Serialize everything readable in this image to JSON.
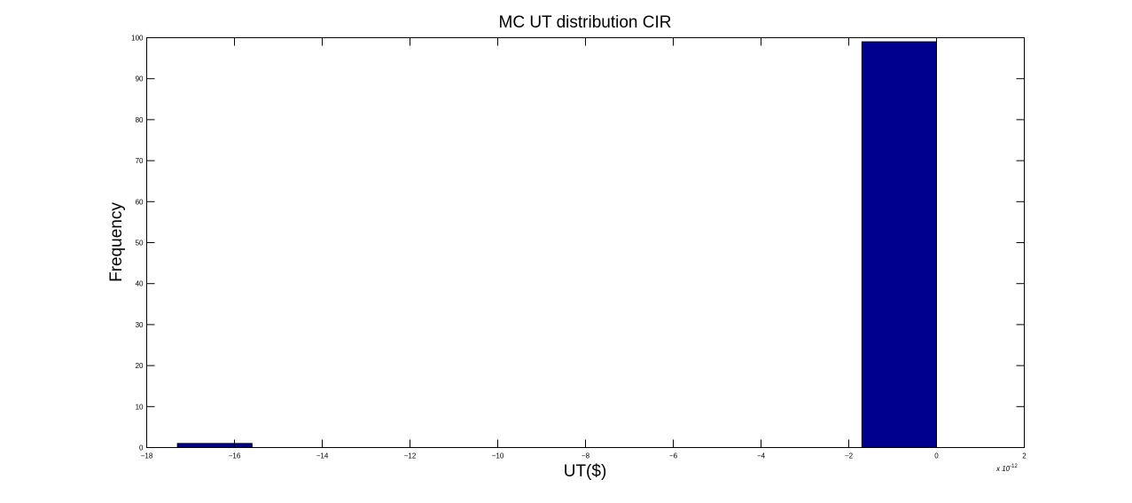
{
  "chart_data": {
    "type": "bar",
    "title": "MC UT distribution CIR",
    "xlabel": "UT($)",
    "ylabel": "Frequency",
    "x_multiplier": {
      "base": "x 10",
      "exponent": "-12"
    },
    "xlim": [
      -18,
      2
    ],
    "ylim": [
      0,
      100
    ],
    "x_ticks": [
      -18,
      -16,
      -14,
      -12,
      -10,
      -8,
      -6,
      -4,
      -2,
      0,
      2
    ],
    "x_tick_labels": [
      "−18",
      "−16",
      "−14",
      "−12",
      "−10",
      "−8",
      "−6",
      "−4",
      "−2",
      "0",
      "2"
    ],
    "y_ticks": [
      0,
      10,
      20,
      30,
      40,
      50,
      60,
      70,
      80,
      90,
      100
    ],
    "y_tick_labels": [
      "0",
      "10",
      "20",
      "30",
      "40",
      "50",
      "60",
      "70",
      "80",
      "90",
      "100"
    ],
    "bars": [
      {
        "x0": -17.3,
        "x1": -15.6,
        "value": 1
      },
      {
        "x0": -1.7,
        "x1": 0.0,
        "value": 99
      }
    ],
    "bar_color": "#00008F",
    "grid": false
  }
}
